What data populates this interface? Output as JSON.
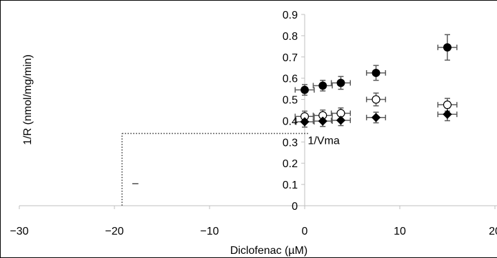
{
  "chart_data": {
    "type": "scatter",
    "title": "",
    "xlabel": "Diclofenac (µM)",
    "ylabel": "1/R (nmol/mg/min)",
    "xlim": [
      -30,
      20
    ],
    "ylim": [
      0,
      0.9
    ],
    "x_ticks": [
      "−30",
      "−20",
      "−10",
      "0",
      "10",
      "20"
    ],
    "y_ticks": [
      "0",
      "0.1",
      "0.2",
      "0.3",
      "0.4",
      "0.5",
      "0.6",
      "0.7",
      "0.8",
      "0.9"
    ],
    "grid": false,
    "legend": "none",
    "series": [
      {
        "marker": "filled-circle",
        "points": [
          {
            "x": 0,
            "y": 0.545,
            "xerr": 1.0,
            "yerr": 0.025
          },
          {
            "x": 1.9,
            "y": 0.565,
            "xerr": 1.0,
            "yerr": 0.025
          },
          {
            "x": 3.8,
            "y": 0.578,
            "xerr": 1.0,
            "yerr": 0.03
          },
          {
            "x": 7.5,
            "y": 0.625,
            "xerr": 1.0,
            "yerr": 0.035
          },
          {
            "x": 15,
            "y": 0.745,
            "xerr": 1.0,
            "yerr": 0.06
          }
        ]
      },
      {
        "marker": "open-circle",
        "points": [
          {
            "x": 0,
            "y": 0.42,
            "xerr": 1.0,
            "yerr": 0.025
          },
          {
            "x": 1.9,
            "y": 0.425,
            "xerr": 1.0,
            "yerr": 0.025
          },
          {
            "x": 3.8,
            "y": 0.435,
            "xerr": 1.0,
            "yerr": 0.025
          },
          {
            "x": 7.5,
            "y": 0.5,
            "xerr": 1.0,
            "yerr": 0.03
          },
          {
            "x": 15,
            "y": 0.475,
            "xerr": 1.0,
            "yerr": 0.03
          }
        ]
      },
      {
        "marker": "filled-diamond",
        "points": [
          {
            "x": 0,
            "y": 0.395,
            "xerr": 1.0,
            "yerr": 0.025
          },
          {
            "x": 1.9,
            "y": 0.398,
            "xerr": 1.0,
            "yerr": 0.025
          },
          {
            "x": 3.8,
            "y": 0.402,
            "xerr": 1.0,
            "yerr": 0.025
          },
          {
            "x": 7.5,
            "y": 0.415,
            "xerr": 1.0,
            "yerr": 0.025
          },
          {
            "x": 15,
            "y": 0.43,
            "xerr": 1.0,
            "yerr": 0.03
          }
        ]
      }
    ],
    "reference_lines": [
      {
        "kind": "horizontal",
        "y": 0.34,
        "from_x": -19.2,
        "to_x": 0.5,
        "style": "dotted"
      },
      {
        "kind": "vertical",
        "x": -19.2,
        "from_y": 0,
        "to_y": 0.34,
        "style": "dotted"
      }
    ],
    "annotations": [
      {
        "text": "1/Vma",
        "x": 2,
        "y": 0.29
      },
      {
        "text": "–",
        "x": -17.8,
        "y": 0.09
      }
    ]
  },
  "colors": {
    "axis": "#bfbfbf",
    "marker": "#000000",
    "error_bar": "#595959",
    "reference_line": "#404040"
  }
}
